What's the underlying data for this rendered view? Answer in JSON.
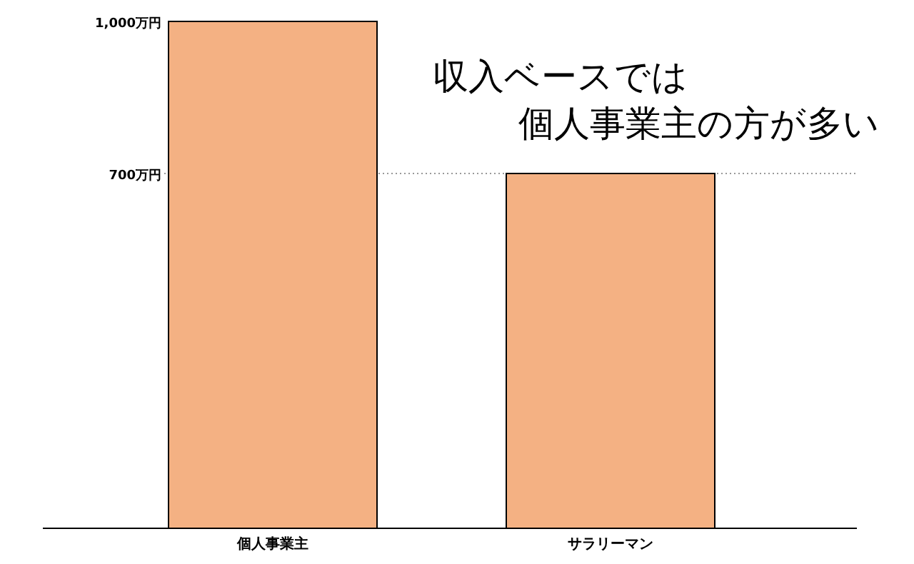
{
  "chart_data": {
    "type": "bar",
    "categories": [
      "個人事業主",
      "サラリーマン"
    ],
    "values": [
      1000,
      700
    ],
    "color": "#f4b183",
    "ylim": [
      0,
      1000
    ],
    "yticks": [
      {
        "value": 700,
        "label": "700万円"
      },
      {
        "value": 1000,
        "label": "1,000万円"
      }
    ],
    "ref_lines": [
      {
        "axis": "y",
        "value": 700,
        "line_style": "dotted",
        "color": "#999999"
      }
    ],
    "annotations": [
      "収入ベースでは",
      "個人事業主の方が多い"
    ]
  }
}
